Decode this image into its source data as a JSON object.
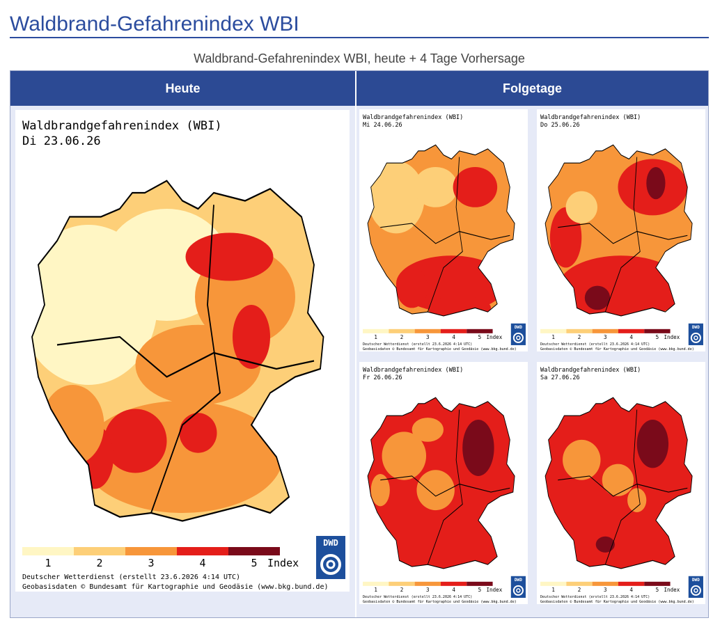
{
  "page_title": "Waldbrand-Gefahrenindex WBI",
  "caption": "Waldbrand-Gefahrenindex WBI, heute + 4 Tage Vorhersage",
  "table": {
    "headers": [
      "Heute",
      "Folgetage"
    ]
  },
  "maps": [
    {
      "title": "Waldbrandgefahrenindex (WBI)",
      "date": "Di 23.06.26"
    },
    {
      "title": "Waldbrandgefahrenindex (WBI)",
      "date": "Mi 24.06.26"
    },
    {
      "title": "Waldbrandgefahrenindex (WBI)",
      "date": "Do 25.06.26"
    },
    {
      "title": "Waldbrandgefahrenindex (WBI)",
      "date": "Fr 26.06.26"
    },
    {
      "title": "Waldbrandgefahrenindex (WBI)",
      "date": "Sa 27.06.26"
    }
  ],
  "legend": {
    "labels": [
      "1",
      "2",
      "3",
      "4",
      "5"
    ],
    "unit": "Index"
  },
  "credits": [
    "Deutscher Wetterdienst (erstellt 23.6.2026 4:14 UTC)",
    "Geobasisdaten © Bundesamt für Kartographie und Geodäsie (www.bkg.bund.de)"
  ],
  "logo": "DWD"
}
